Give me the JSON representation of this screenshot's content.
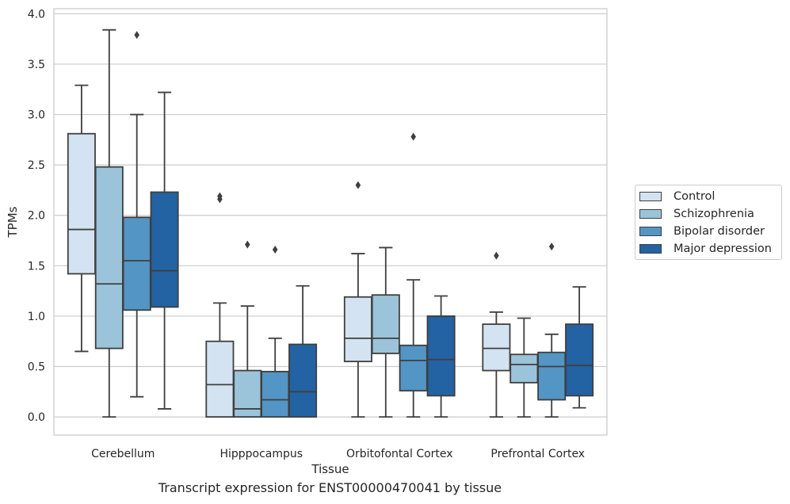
{
  "caption": "Transcript expression for ENST00000470041 by tissue",
  "legend": {
    "items": [
      {
        "label": "Control",
        "color": "#d4e3f1"
      },
      {
        "label": "Schizophrenia",
        "color": "#9bc4da"
      },
      {
        "label": "Bipolar disorder",
        "color": "#5395c4"
      },
      {
        "label": "Major depression",
        "color": "#2362a3"
      }
    ]
  },
  "chart_data": {
    "type": "box",
    "xlabel": "Tissue",
    "ylabel": "TPMs",
    "ylim": [
      -0.18,
      4.05
    ],
    "yticks": [
      "0.0",
      "0.5",
      "1.0",
      "1.5",
      "2.0",
      "2.5",
      "3.0",
      "3.5",
      "4.0"
    ],
    "grid": "horizontal",
    "legend_position": "right",
    "categories": [
      "Cerebellum",
      "Hipppocampus",
      "Orbitofontal Cortex",
      "Prefrontal Cortex"
    ],
    "series": [
      {
        "name": "Control",
        "color": "#d4e3f1",
        "boxes": [
          {
            "whislo": 0.65,
            "q1": 1.42,
            "med": 1.86,
            "q3": 2.81,
            "whishi": 3.29,
            "fliers": []
          },
          {
            "whislo": 0.0,
            "q1": 0.0,
            "med": 0.32,
            "q3": 0.75,
            "whishi": 1.13,
            "fliers": [
              2.16,
              2.19
            ]
          },
          {
            "whislo": 0.0,
            "q1": 0.55,
            "med": 0.78,
            "q3": 1.19,
            "whishi": 1.62,
            "fliers": [
              2.3
            ]
          },
          {
            "whislo": 0.0,
            "q1": 0.46,
            "med": 0.68,
            "q3": 0.92,
            "whishi": 1.04,
            "fliers": [
              1.6
            ]
          }
        ]
      },
      {
        "name": "Schizophrenia",
        "color": "#9bc4da",
        "boxes": [
          {
            "whislo": 0.0,
            "q1": 0.68,
            "med": 1.32,
            "q3": 2.48,
            "whishi": 3.84,
            "fliers": []
          },
          {
            "whislo": 0.0,
            "q1": 0.0,
            "med": 0.08,
            "q3": 0.46,
            "whishi": 1.1,
            "fliers": [
              1.71
            ]
          },
          {
            "whislo": 0.0,
            "q1": 0.63,
            "med": 0.78,
            "q3": 1.21,
            "whishi": 1.68,
            "fliers": []
          },
          {
            "whislo": 0.0,
            "q1": 0.34,
            "med": 0.52,
            "q3": 0.62,
            "whishi": 0.98,
            "fliers": []
          }
        ]
      },
      {
        "name": "Bipolar disorder",
        "color": "#5395c4",
        "boxes": [
          {
            "whislo": 0.2,
            "q1": 1.06,
            "med": 1.55,
            "q3": 1.98,
            "whishi": 3.0,
            "fliers": [
              3.79
            ]
          },
          {
            "whislo": 0.0,
            "q1": 0.0,
            "med": 0.17,
            "q3": 0.45,
            "whishi": 0.78,
            "fliers": [
              1.66
            ]
          },
          {
            "whislo": 0.0,
            "q1": 0.26,
            "med": 0.56,
            "q3": 0.71,
            "whishi": 1.36,
            "fliers": [
              2.78
            ]
          },
          {
            "whislo": 0.0,
            "q1": 0.17,
            "med": 0.5,
            "q3": 0.64,
            "whishi": 0.82,
            "fliers": [
              1.69
            ]
          }
        ]
      },
      {
        "name": "Major depression",
        "color": "#2362a3",
        "boxes": [
          {
            "whislo": 0.08,
            "q1": 1.09,
            "med": 1.45,
            "q3": 2.23,
            "whishi": 3.22,
            "fliers": []
          },
          {
            "whislo": 0.0,
            "q1": 0.0,
            "med": 0.25,
            "q3": 0.72,
            "whishi": 1.3,
            "fliers": []
          },
          {
            "whislo": 0.0,
            "q1": 0.21,
            "med": 0.57,
            "q3": 1.0,
            "whishi": 1.2,
            "fliers": []
          },
          {
            "whislo": 0.09,
            "q1": 0.21,
            "med": 0.51,
            "q3": 0.92,
            "whishi": 1.29,
            "fliers": []
          }
        ]
      }
    ]
  }
}
